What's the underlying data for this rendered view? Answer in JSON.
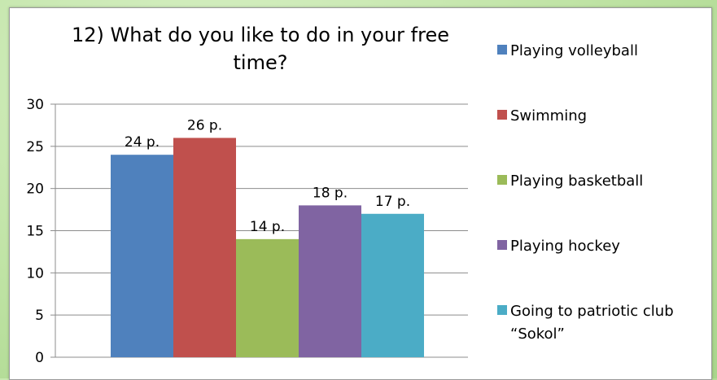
{
  "chart_data": {
    "type": "bar",
    "title": "12) What do you like to do in your free time?",
    "xlabel": "",
    "ylabel": "",
    "ylim": [
      0,
      30
    ],
    "yticks": [
      0,
      5,
      10,
      15,
      20,
      25,
      30
    ],
    "grid": true,
    "legend_position": "right",
    "series": [
      {
        "name": "Playing volleyball",
        "value": 24,
        "label": "24 p.",
        "color": "#4f81bd"
      },
      {
        "name": "Swimming",
        "value": 26,
        "label": "26 p.",
        "color": "#c0504d"
      },
      {
        "name": "Playing basketball",
        "value": 14,
        "label": "14 p.",
        "color": "#9bbb59"
      },
      {
        "name": "Playing hockey",
        "value": 18,
        "label": "18 p.",
        "color": "#8064a2"
      },
      {
        "name": "Going to patriotic club “Sokol”",
        "value": 17,
        "label": "17 p.",
        "color": "#4bacc6"
      }
    ]
  }
}
